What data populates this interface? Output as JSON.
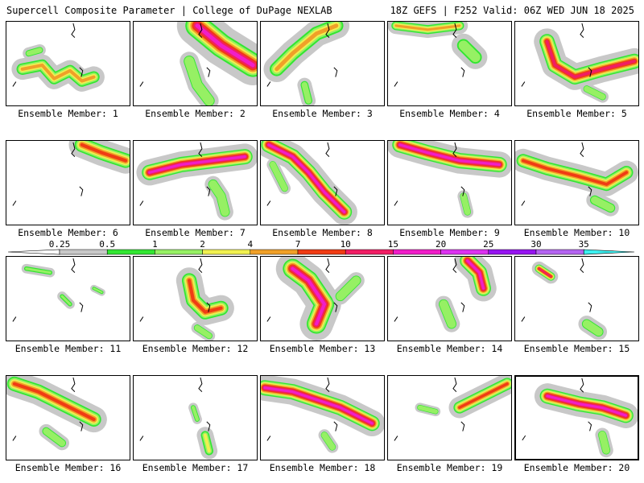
{
  "header": {
    "title_left": "Supercell Composite Parameter | College of DuPage NEXLAB",
    "title_right": "18Z GEFS | F252 Valid: 06Z WED JUN 18 2025"
  },
  "member_prefix": "Ensemble Member:",
  "members": [
    {
      "id": 1,
      "label": "Ensemble Member: 1",
      "max_category": "4",
      "selected": false
    },
    {
      "id": 2,
      "label": "Ensemble Member: 2",
      "max_category": "15",
      "selected": false
    },
    {
      "id": 3,
      "label": "Ensemble Member: 3",
      "max_category": "4",
      "selected": false
    },
    {
      "id": 4,
      "label": "Ensemble Member: 4",
      "max_category": "4",
      "selected": false
    },
    {
      "id": 5,
      "label": "Ensemble Member: 5",
      "max_category": "10",
      "selected": false
    },
    {
      "id": 6,
      "label": "Ensemble Member: 6",
      "max_category": "7",
      "selected": false
    },
    {
      "id": 7,
      "label": "Ensemble Member: 7",
      "max_category": "15",
      "selected": false
    },
    {
      "id": 8,
      "label": "Ensemble Member: 8",
      "max_category": "15",
      "selected": false
    },
    {
      "id": 9,
      "label": "Ensemble Member: 9",
      "max_category": "15",
      "selected": false
    },
    {
      "id": 10,
      "label": "Ensemble Member: 10",
      "max_category": "7",
      "selected": false
    },
    {
      "id": 11,
      "label": "Ensemble Member: 11",
      "max_category": "1",
      "selected": false
    },
    {
      "id": 12,
      "label": "Ensemble Member: 12",
      "max_category": "7",
      "selected": false
    },
    {
      "id": 13,
      "label": "Ensemble Member: 13",
      "max_category": "15",
      "selected": false
    },
    {
      "id": 14,
      "label": "Ensemble Member: 14",
      "max_category": "15",
      "selected": false
    },
    {
      "id": 15,
      "label": "Ensemble Member: 15",
      "max_category": "10",
      "selected": false
    },
    {
      "id": 16,
      "label": "Ensemble Member: 16",
      "max_category": "7",
      "selected": false
    },
    {
      "id": 17,
      "label": "Ensemble Member: 17",
      "max_category": "2",
      "selected": false
    },
    {
      "id": 18,
      "label": "Ensemble Member: 18",
      "max_category": "15",
      "selected": false
    },
    {
      "id": 19,
      "label": "Ensemble Member: 19",
      "max_category": "7",
      "selected": false
    },
    {
      "id": 20,
      "label": "Ensemble Member: 20",
      "max_category": "15",
      "selected": true
    }
  ],
  "colorbar": {
    "ticks": [
      "0.25",
      "0.5",
      "1",
      "2",
      "4",
      "7",
      "10",
      "15",
      "20",
      "25",
      "30",
      "35"
    ],
    "colors": [
      "#c8c8c8",
      "#32e632",
      "#96f064",
      "#f0f050",
      "#f0a028",
      "#f03c14",
      "#f01e64",
      "#f01ec8",
      "#dc32f0",
      "#9614f0",
      "#b464f0",
      "#3cf0f0"
    ]
  },
  "colors": {
    "0.25": "#c8c8c8",
    "0.5": "#32e632",
    "1": "#96f064",
    "2": "#f0f050",
    "4": "#f0a028",
    "7": "#f03c14",
    "10": "#f01e64",
    "15": "#f01ec8"
  }
}
